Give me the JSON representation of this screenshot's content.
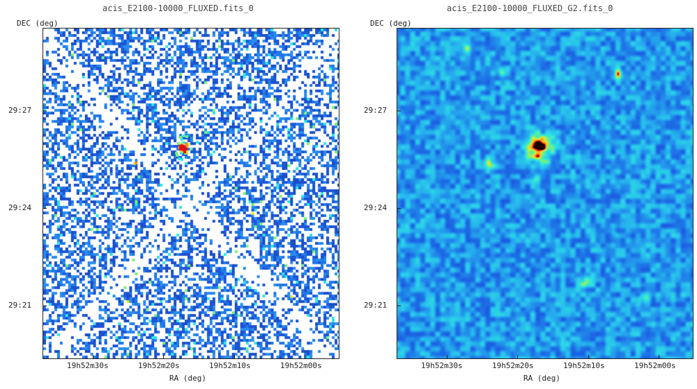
{
  "panels": [
    {
      "title": "acis_E2100-10000_FLUXED.fits_0",
      "ylabel": "DEC (deg)",
      "xlabel": "RA (deg)",
      "yticks": [
        "29:27",
        "29:24",
        "29:21"
      ],
      "xticks": [
        "19h52m30s",
        "19h52m20s",
        "19h52m10s",
        "19h52m00s"
      ],
      "image_style": "unsmoothed-sparse-pixels"
    },
    {
      "title": "acis_E2100-10000_FLUXED_G2.fits_0",
      "ylabel": "DEC (deg)",
      "xlabel": "RA (deg)",
      "yticks": [
        "29:27",
        "29:24",
        "29:21"
      ],
      "xticks": [
        "19h52m30s",
        "19h52m20s",
        "19h52m10s",
        "19h52m00s"
      ],
      "image_style": "gaussian-smoothed"
    }
  ],
  "colormap": [
    "#ffffff",
    "#1e4fd6",
    "#1f78e8",
    "#27b8ee",
    "#2ee6e0",
    "#7af07a",
    "#e6e62a",
    "#ff8a1a",
    "#e01010",
    "#1a0000"
  ]
}
